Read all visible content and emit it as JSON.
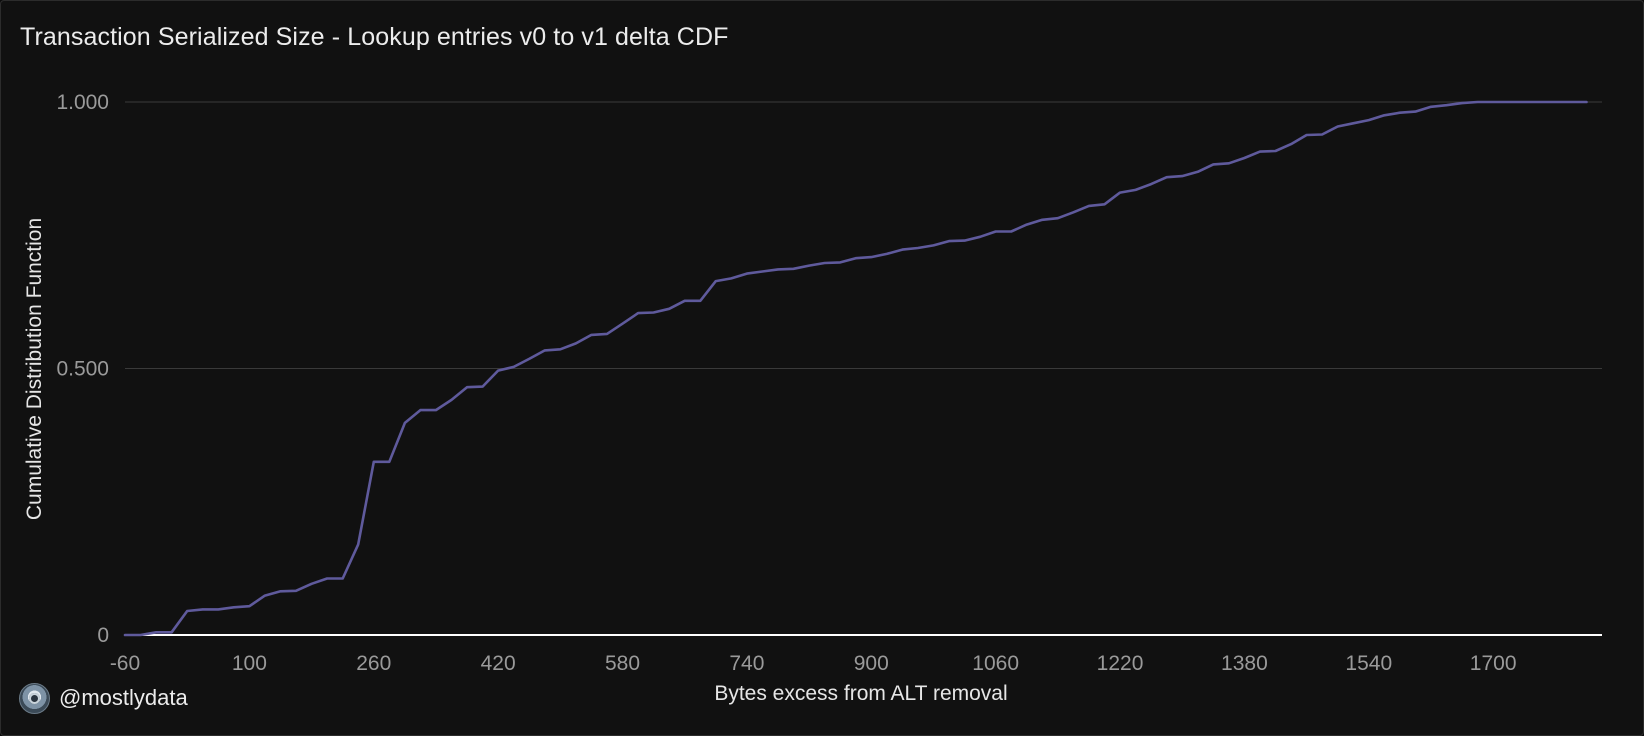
{
  "title": "Transaction Serialized Size - Lookup entries v0 to v1 delta CDF",
  "attribution": {
    "handle": "@mostlydata",
    "avatar_icon": "avatar-icon"
  },
  "colors": {
    "line": "#5f5a9c",
    "grid": "#3a3a3a",
    "baseline": "#ffffff",
    "background": "#111111"
  },
  "chart_data": {
    "type": "line",
    "title": "Transaction Serialized Size - Lookup entries v0 to v1 delta CDF",
    "xlabel": "Bytes excess from ALT removal",
    "ylabel": "Cumulative Distribution Function",
    "xlim": [
      -60,
      1840
    ],
    "ylim": [
      0,
      1
    ],
    "x_ticks": [
      -60,
      100,
      260,
      420,
      580,
      740,
      900,
      1060,
      1220,
      1380,
      1540,
      1700
    ],
    "x_tick_labels": [
      "-60",
      "100",
      "260",
      "420",
      "580",
      "740",
      "900",
      "1060",
      "1220",
      "1380",
      "1540",
      "1700"
    ],
    "y_ticks": [
      0,
      0.5,
      1
    ],
    "y_tick_labels": [
      "0",
      "0.500",
      "1.000"
    ],
    "grid": true,
    "legend": "none",
    "series": [
      {
        "x": [
          -60,
          -40,
          -20,
          0,
          20,
          40,
          60,
          80,
          100,
          120,
          140,
          160,
          180,
          200,
          220,
          240,
          260,
          280,
          300,
          320,
          340,
          360,
          380,
          400,
          420,
          440,
          460,
          480,
          500,
          520,
          540,
          560,
          580,
          600,
          620,
          640,
          660,
          680,
          700,
          720,
          740,
          760,
          780,
          800,
          820,
          840,
          860,
          880,
          900,
          920,
          940,
          960,
          980,
          1000,
          1020,
          1040,
          1060,
          1080,
          1100,
          1120,
          1140,
          1160,
          1180,
          1200,
          1220,
          1240,
          1260,
          1280,
          1300,
          1320,
          1340,
          1360,
          1380,
          1400,
          1420,
          1440,
          1460,
          1480,
          1500,
          1520,
          1540,
          1560,
          1580,
          1600,
          1620,
          1640,
          1660,
          1680,
          1700,
          1720,
          1740,
          1760,
          1780,
          1800,
          1820
        ],
        "y": [
          0,
          0,
          0.005,
          0.005,
          0.045,
          0.048,
          0.048,
          0.052,
          0.054,
          0.074,
          0.082,
          0.083,
          0.096,
          0.106,
          0.106,
          0.17,
          0.325,
          0.325,
          0.398,
          0.422,
          0.422,
          0.441,
          0.465,
          0.466,
          0.496,
          0.503,
          0.518,
          0.534,
          0.536,
          0.547,
          0.563,
          0.565,
          0.584,
          0.604,
          0.605,
          0.612,
          0.627,
          0.627,
          0.664,
          0.669,
          0.678,
          0.682,
          0.686,
          0.687,
          0.693,
          0.698,
          0.699,
          0.707,
          0.709,
          0.715,
          0.723,
          0.726,
          0.731,
          0.739,
          0.74,
          0.747,
          0.757,
          0.757,
          0.77,
          0.779,
          0.782,
          0.793,
          0.805,
          0.808,
          0.83,
          0.835,
          0.846,
          0.859,
          0.861,
          0.869,
          0.883,
          0.885,
          0.895,
          0.907,
          0.908,
          0.921,
          0.938,
          0.939,
          0.954,
          0.96,
          0.966,
          0.975,
          0.98,
          0.982,
          0.991,
          0.994,
          0.998,
          1.0,
          1.0,
          1.0,
          1.0,
          1.0,
          1.0,
          1.0,
          1.0
        ]
      }
    ]
  }
}
